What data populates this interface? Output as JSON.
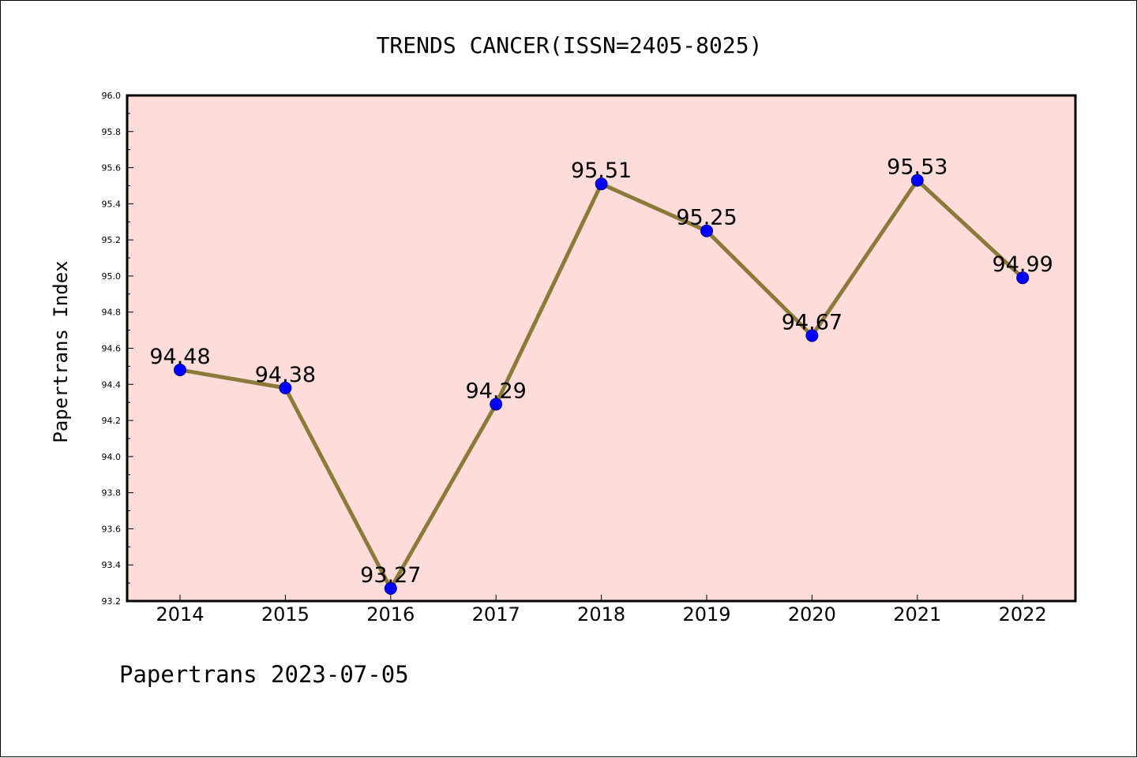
{
  "chart_data": {
    "type": "line",
    "title": "TRENDS CANCER(ISSN=2405-8025)",
    "xlabel": "",
    "ylabel": "Papertrans Index",
    "x": [
      "2014",
      "2015",
      "2016",
      "2017",
      "2018",
      "2019",
      "2020",
      "2021",
      "2022"
    ],
    "values": [
      94.48,
      94.38,
      93.27,
      94.29,
      95.51,
      95.25,
      94.67,
      95.53,
      94.99
    ],
    "data_labels": [
      "94.48",
      "94.38",
      "93.27",
      "94.29",
      "95.51",
      "95.25",
      "94.67",
      "95.53",
      "94.99"
    ],
    "ylim": [
      93.2,
      96.0
    ],
    "yticks": [
      "93.2",
      "93.4",
      "93.6",
      "93.8",
      "94.0",
      "94.2",
      "94.4",
      "94.6",
      "94.8",
      "95.0",
      "95.2",
      "95.4",
      "95.6",
      "95.8",
      "96.0"
    ],
    "grid": false,
    "legend": "none",
    "colors": {
      "plot_background": "#fddcda",
      "line": "#8b7a3a",
      "marker": "#0000ff"
    }
  },
  "footer": "Papertrans 2023-07-05"
}
